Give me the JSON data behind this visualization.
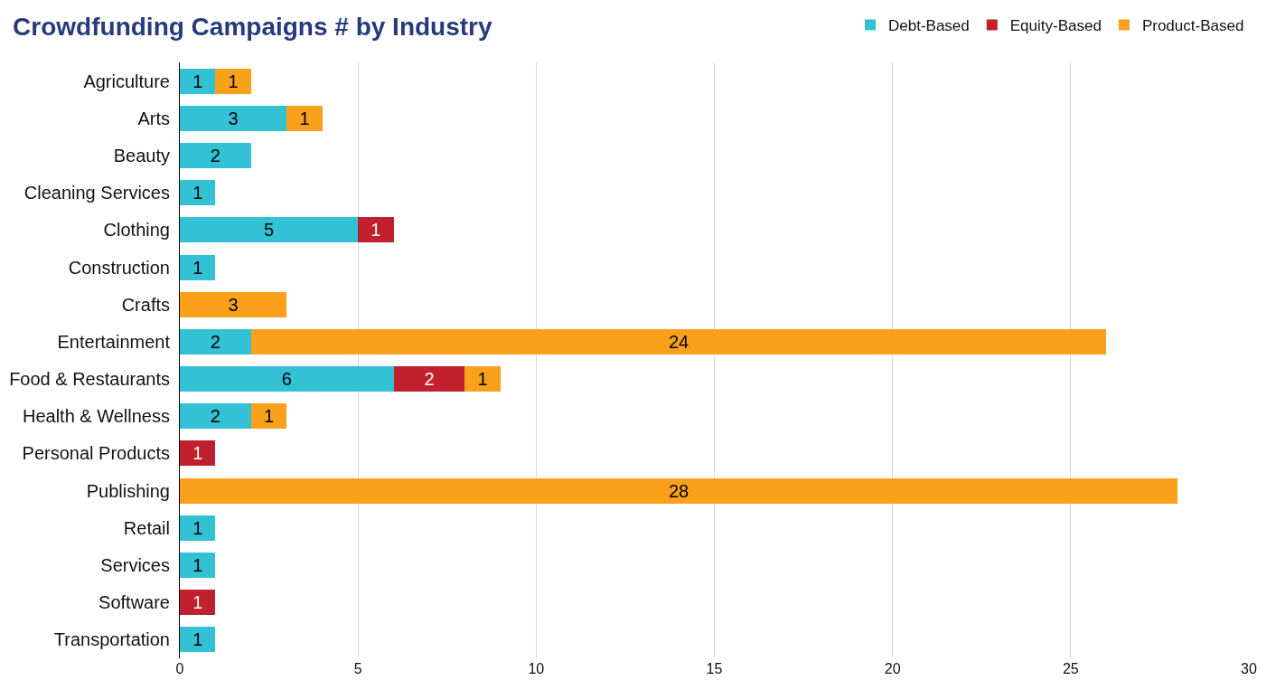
{
  "chart_data": {
    "type": "bar",
    "orientation": "horizontal",
    "stacked": true,
    "title": "Crowdfunding Campaigns # by Industry",
    "categories": [
      "Agriculture",
      "Arts",
      "Beauty",
      "Cleaning Services",
      "Clothing",
      "Construction",
      "Crafts",
      "Entertainment",
      "Food & Restaurants",
      "Health & Wellness",
      "Personal Products",
      "Publishing",
      "Retail",
      "Services",
      "Software",
      "Transportation"
    ],
    "series": [
      {
        "name": "Debt-Based",
        "color": "#33c1d6",
        "values": [
          1,
          3,
          2,
          1,
          5,
          1,
          null,
          2,
          6,
          2,
          null,
          null,
          1,
          1,
          null,
          1
        ]
      },
      {
        "name": "Equity-Based",
        "color": "#c1202f",
        "values": [
          null,
          null,
          null,
          null,
          1,
          null,
          null,
          null,
          2,
          null,
          1,
          null,
          null,
          null,
          1,
          null
        ]
      },
      {
        "name": "Product-Based",
        "color": "#f9a11b",
        "values": [
          1,
          1,
          null,
          null,
          null,
          null,
          3,
          24,
          1,
          1,
          null,
          28,
          null,
          null,
          null,
          null
        ]
      }
    ],
    "xlim": [
      0,
      30
    ],
    "xticks": [
      0,
      5,
      10,
      15,
      20,
      25,
      30
    ],
    "grid": "x",
    "legend": "top right",
    "data_labels": true
  }
}
